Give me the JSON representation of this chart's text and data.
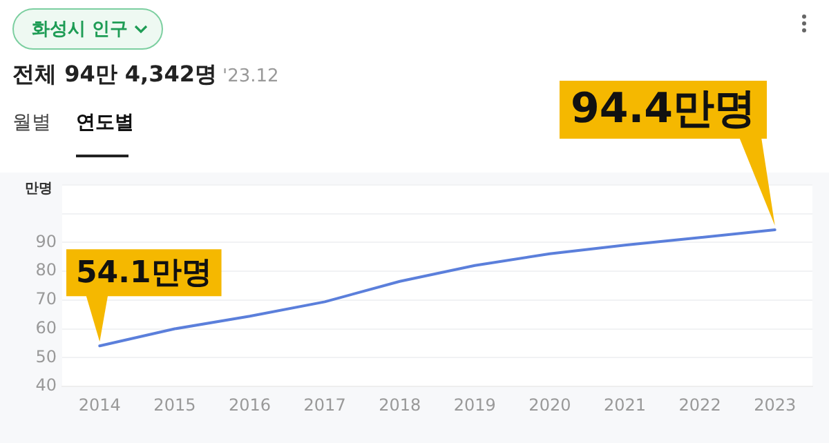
{
  "chart_data": {
    "type": "line",
    "title": "화성시 인구",
    "subtitle": "전체 94만 4,342명",
    "annotations": [
      "'23.12",
      "월별",
      "연도별",
      {
        "text": "54.1만명",
        "x": "2014",
        "y": 54.1
      },
      {
        "text": "94.4만명",
        "x": "2023",
        "y": 94.4
      }
    ],
    "ylabel": "만명",
    "categories": [
      "2014",
      "2015",
      "2016",
      "2017",
      "2018",
      "2019",
      "2020",
      "2021",
      "2022",
      "2023"
    ],
    "series": [
      {
        "color": "#5b7fdb",
        "values": [
          54.1,
          60.0,
          64.4,
          69.4,
          76.5,
          82.0,
          86.1,
          89.1,
          91.7,
          94.4
        ]
      }
    ],
    "ylim": [
      40,
      110
    ],
    "yticks": [
      40,
      50,
      60,
      70,
      80,
      90,
      {
        "value": 100,
        "label": null
      },
      {
        "value": 110,
        "label": null
      }
    ],
    "grid": "y",
    "legend": false,
    "marker": "none",
    "line_style": "solid"
  }
}
